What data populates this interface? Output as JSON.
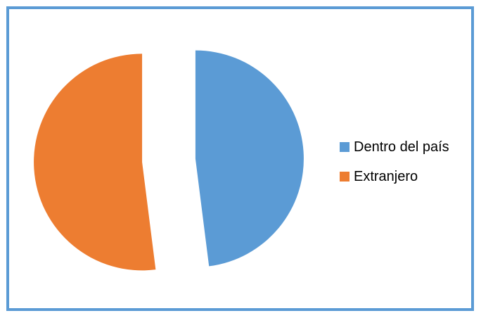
{
  "chart_data": {
    "type": "pie",
    "title": "",
    "exploded": true,
    "slices": [
      {
        "label": "Dentro del país",
        "value": 48,
        "color": "#5b9bd5"
      },
      {
        "label": "Extranjero",
        "value": 52,
        "color": "#ed7d31"
      }
    ],
    "legend_position": "right",
    "border_color": "#5b9bd5"
  }
}
